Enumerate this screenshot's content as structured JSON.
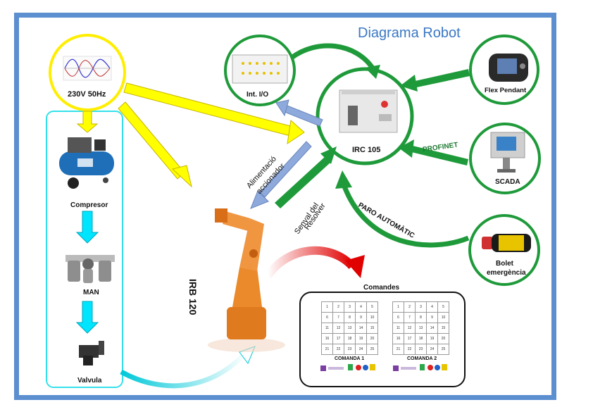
{
  "title": "Diagrama Robot",
  "nodes": {
    "power": "230V 50Hz",
    "compressor": "Compresor",
    "man": "MAN",
    "valve": "Valvula",
    "io": "Int. I/O",
    "controller": "IRC 105",
    "flex_pendant": "Flex Pendant",
    "scada": "SCADA",
    "emergency_line1": "Bolet",
    "emergency_line2": "emergència",
    "robot": "IRB 120",
    "commands": "Comandes"
  },
  "links": {
    "power_supply_line1": "Alimentació",
    "power_supply_line2": "accionador",
    "resolver_line1": "Senyal del",
    "resolver_line2": "Resolver",
    "profinet": "PROFINET",
    "auto_stop": "PARO AUTOMÀTIC"
  },
  "commands": {
    "panel1": "COMANDA 1",
    "panel2": "COMANDA 2",
    "cells": [
      "1",
      "2",
      "3",
      "4",
      "5",
      "6",
      "7",
      "8",
      "9",
      "10",
      "11",
      "12",
      "13",
      "14",
      "15",
      "16",
      "17",
      "18",
      "19",
      "20",
      "21",
      "22",
      "23",
      "24",
      "25"
    ]
  },
  "colors": {
    "border": "#5b8fd0",
    "power_arrow": "#ffff00",
    "pneumatic_arrow": "#00e5ff",
    "signal_arrow": "#8ea9db",
    "green_arrow": "#1f9a3a",
    "command_arrow": "#e00000"
  }
}
